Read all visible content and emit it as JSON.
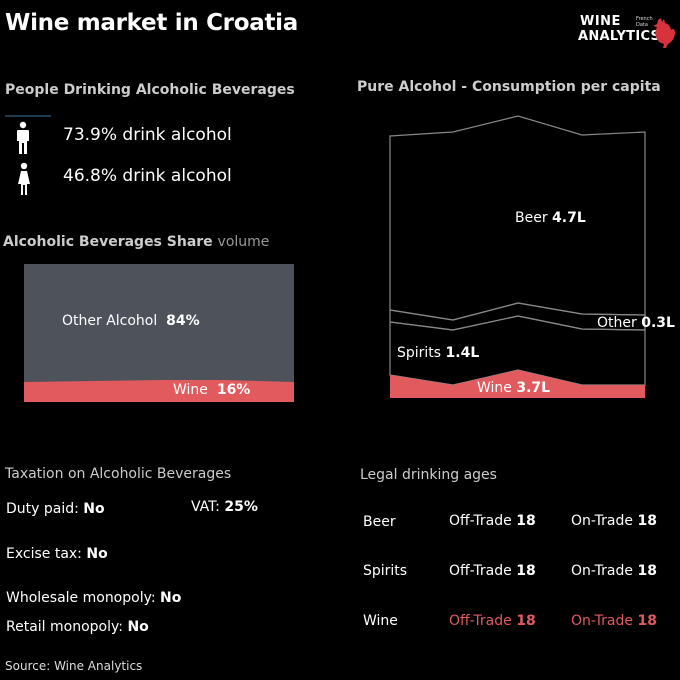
{
  "title": "Wine market in Croatia",
  "logo": {
    "line1": "WINE",
    "line2": "ANALYTICS",
    "sub": "French Data"
  },
  "people": {
    "heading": "People Drinking Alcoholic Beverages",
    "men": {
      "icon": "male-icon",
      "text": "73.9% drink alcohol"
    },
    "women": {
      "icon": "female-icon",
      "text": "46.8% drink alcohol"
    }
  },
  "share": {
    "heading": "Alcoholic Beverages Share",
    "heading_unit": "volume",
    "other_name": "Other Alcohol",
    "other_value": "84%",
    "wine_name": "Wine",
    "wine_value": "16%"
  },
  "pure": {
    "heading": "Pure Alcohol - Consumption per capita",
    "beer_name": "Beer",
    "beer_value": "4.7L",
    "other_name": "Other",
    "other_value": "0.3L",
    "spirits_name": "Spirits",
    "spirits_value": "1.4L",
    "wine_name": "Wine",
    "wine_value": "3.7L"
  },
  "taxation": {
    "heading": "Taxation on Alcoholic Beverages",
    "duty_label": "Duty paid:",
    "duty_value": "No",
    "vat_label": "VAT:",
    "vat_value": "25%",
    "excise_label": "Excise tax:",
    "excise_value": "No",
    "wholesale_label": "Wholesale monopoly:",
    "wholesale_value": "No",
    "retail_label": "Retail monopoly:",
    "retail_value": "No"
  },
  "ages": {
    "heading": "Legal drinking ages",
    "rows": [
      {
        "name": "Beer",
        "off_label": "Off-Trade",
        "off_value": "18",
        "on_label": "On-Trade",
        "on_value": "18"
      },
      {
        "name": "Spirits",
        "off_label": "Off-Trade",
        "off_value": "18",
        "on_label": "On-Trade",
        "on_value": "18"
      },
      {
        "name": "Wine",
        "off_label": "Off-Trade",
        "off_value": "18",
        "on_label": "On-Trade",
        "on_value": "18"
      }
    ]
  },
  "colors": {
    "wine": "#e05a5e",
    "other": "#4d525b",
    "background": "#000000",
    "outline": "#888888"
  },
  "chart_data": [
    {
      "type": "area",
      "title": "Alcoholic Beverages Share",
      "series": [
        {
          "name": "Other Alcohol",
          "values": [
            84
          ]
        },
        {
          "name": "Wine",
          "values": [
            16
          ]
        }
      ],
      "unit": "%"
    },
    {
      "type": "area",
      "title": "Pure Alcohol - Consumption per capita",
      "series": [
        {
          "name": "Beer",
          "values": [
            4.7
          ]
        },
        {
          "name": "Other",
          "values": [
            0.3
          ]
        },
        {
          "name": "Spirits",
          "values": [
            1.4
          ]
        },
        {
          "name": "Wine",
          "values": [
            3.7
          ]
        }
      ],
      "unit": "L"
    }
  ],
  "source": "Source: Wine Analytics"
}
